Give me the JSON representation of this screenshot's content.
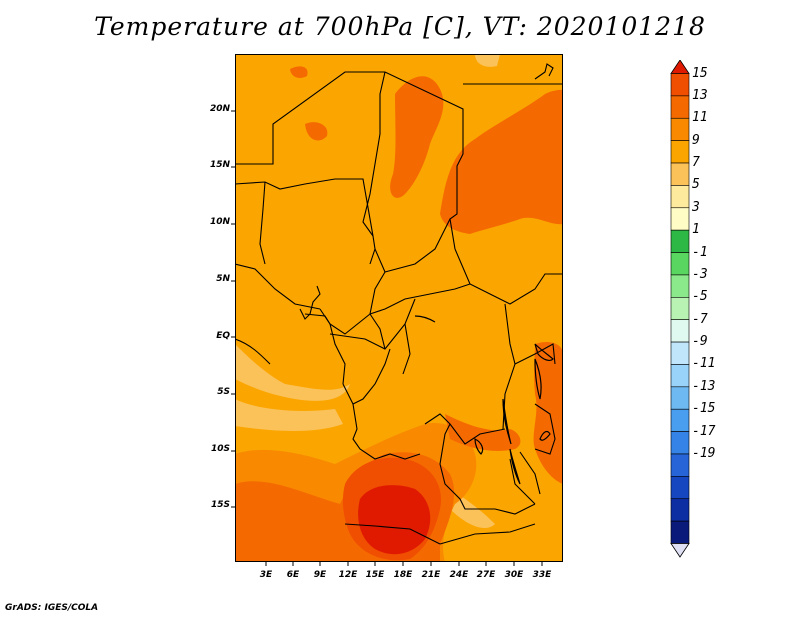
{
  "title": "Temperature at 700hPa [C], VT: 2020101218",
  "credit": "GrADS: IGES/COLA",
  "y_axis_labels": [
    "20N",
    "15N",
    "10N",
    "5N",
    "EQ",
    "5S",
    "10S",
    "15S"
  ],
  "x_axis_labels": [
    "3E",
    "6E",
    "9E",
    "12E",
    "15E",
    "18E",
    "21E",
    "24E",
    "27E",
    "30E",
    "33E"
  ],
  "colorbar": {
    "labels": [
      "15",
      "13",
      "11",
      "9",
      "7",
      "5",
      "3",
      "1",
      "-1",
      "-3",
      "-5",
      "-7",
      "-9",
      "-11",
      "-13",
      "-15",
      "-17",
      "-19"
    ],
    "colors": [
      "#e01a00",
      "#f04e00",
      "#f56a00",
      "#f98a00",
      "#fba600",
      "#fbc25a",
      "#fdea9c",
      "#fffcc6",
      "#2db845",
      "#59d660",
      "#8be88b",
      "#b8f3b4",
      "#e0f9f0",
      "#bfe6fb",
      "#99d3fa",
      "#6fb9f2",
      "#4a9ef0",
      "#3683e8",
      "#2664d8",
      "#1747c0",
      "#0d2da2",
      "#0a1a7a",
      "#e0e0f5"
    ]
  },
  "field_colors": {
    "base": "#fba600",
    "t11": "#f98a00",
    "t13": "#f56a00",
    "t15": "#f04e00",
    "t17": "#e01a00",
    "cool": "#fbc25a"
  }
}
